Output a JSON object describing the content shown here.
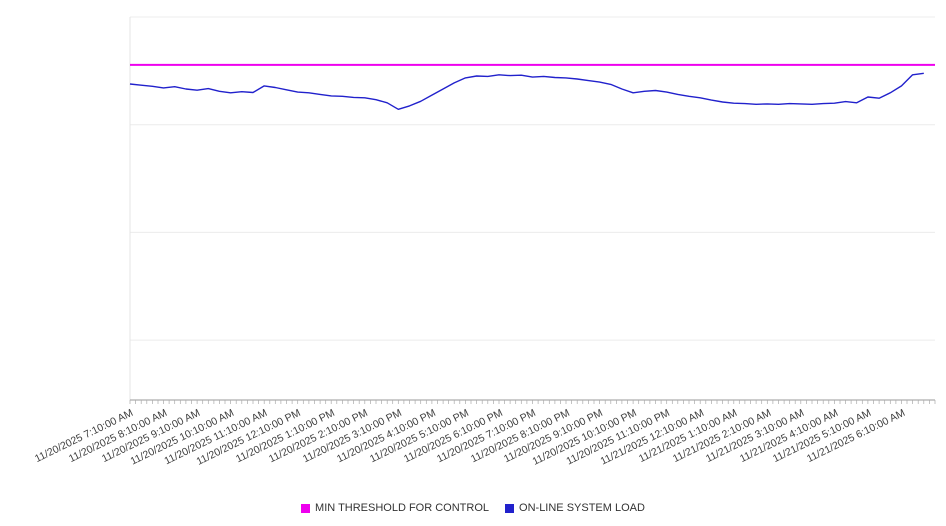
{
  "chart_data": {
    "type": "line",
    "title": "",
    "xlabel": "",
    "ylabel": "",
    "ylim": [
      0,
      100
    ],
    "y_axis_labels_visible": false,
    "grid": "horizontal",
    "legend_position": "bottom-center",
    "categories": [
      "11/20/2025 7:10:00 AM",
      "11/20/2025 8:10:00 AM",
      "11/20/2025 9:10:00 AM",
      "11/20/2025 10:10:00 AM",
      "11/20/2025 11:10:00 AM",
      "11/20/2025 12:10:00 PM",
      "11/20/2025 1:10:00 PM",
      "11/20/2025 2:10:00 PM",
      "11/20/2025 3:10:00 PM",
      "11/20/2025 4:10:00 PM",
      "11/20/2025 5:10:00 PM",
      "11/20/2025 6:10:00 PM",
      "11/20/2025 7:10:00 PM",
      "11/20/2025 8:10:00 PM",
      "11/20/2025 9:10:00 PM",
      "11/20/2025 10:10:00 PM",
      "11/20/2025 11:10:00 PM",
      "11/21/2025 12:10:00 AM",
      "11/21/2025 1:10:00 AM",
      "11/21/2025 2:10:00 AM",
      "11/21/2025 3:10:00 AM",
      "11/21/2025 4:10:00 AM",
      "11/21/2025 5:10:00 AM",
      "11/21/2025 6:10:00 AM"
    ],
    "series": [
      {
        "name": "MIN THRESHOLD FOR CONTROL",
        "type": "constant-threshold",
        "color": "#ee00ee",
        "value": 87.5
      },
      {
        "name": "ON-LINE SYSTEM LOAD",
        "type": "line",
        "color": "#2121cc",
        "points_per_hour": 3,
        "values": [
          82.5,
          82.2,
          81.9,
          81.5,
          81.8,
          81.2,
          80.9,
          81.3,
          80.6,
          80.2,
          80.5,
          80.3,
          82.0,
          81.6,
          81.0,
          80.4,
          80.2,
          79.8,
          79.4,
          79.3,
          79.0,
          78.9,
          78.4,
          77.6,
          75.9,
          76.8,
          78.0,
          79.6,
          81.2,
          82.8,
          84.1,
          84.6,
          84.5,
          84.9,
          84.7,
          84.8,
          84.3,
          84.5,
          84.2,
          84.1,
          83.8,
          83.4,
          83.0,
          82.4,
          81.2,
          80.2,
          80.6,
          80.8,
          80.4,
          79.8,
          79.3,
          78.9,
          78.3,
          77.8,
          77.5,
          77.4,
          77.2,
          77.3,
          77.2,
          77.4,
          77.3,
          77.2,
          77.4,
          77.5,
          77.9,
          77.6,
          79.1,
          78.8,
          80.2,
          82.0,
          84.9,
          85.3
        ]
      }
    ],
    "colors": {
      "gridline": "#ececec",
      "axis": "#9a9a9a",
      "tick": "#aaaaaa",
      "label_text": "#3d3d3d",
      "legend_text": "#333333"
    }
  }
}
